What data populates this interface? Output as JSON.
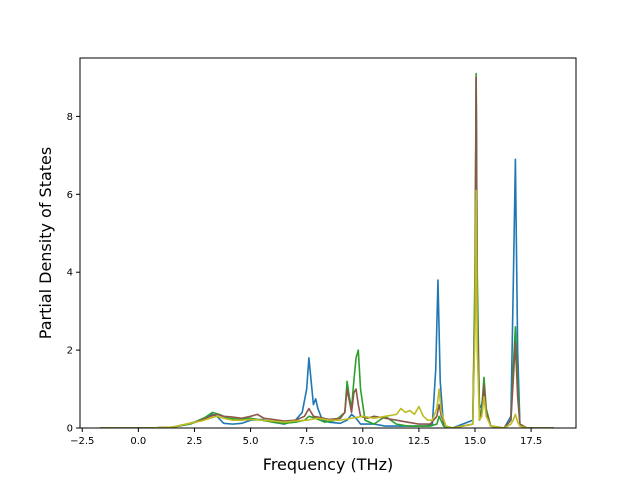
{
  "chart_data": {
    "type": "line",
    "title": "",
    "xlabel": "Frequency (THz)",
    "ylabel": "Partial Density of States",
    "xlim": [
      -2.6,
      19.5
    ],
    "ylim": [
      0,
      9.5
    ],
    "xticks": [
      -2.5,
      0.0,
      2.5,
      5.0,
      7.5,
      10.0,
      12.5,
      15.0,
      17.5
    ],
    "xtick_labels": [
      "−2.5",
      "0.0",
      "2.5",
      "5.0",
      "7.5",
      "10.0",
      "12.5",
      "15.0",
      "17.5"
    ],
    "yticks": [
      0,
      2,
      4,
      6,
      8
    ],
    "ytick_labels": [
      "0",
      "2",
      "4",
      "6",
      "8"
    ],
    "grid": false,
    "legend": "none",
    "series": [
      {
        "color": "#1f77b4",
        "x": [
          -1.7,
          0.5,
          1.5,
          2.3,
          2.7,
          3.0,
          3.3,
          3.5,
          3.8,
          4.2,
          4.6,
          5.0,
          5.5,
          6.0,
          6.5,
          7.0,
          7.3,
          7.5,
          7.6,
          7.7,
          7.8,
          7.9,
          8.0,
          8.2,
          8.5,
          9.0,
          9.3,
          9.5,
          9.7,
          9.9,
          10.5,
          11.0,
          12.0,
          12.8,
          13.1,
          13.25,
          13.35,
          13.45,
          13.6,
          14.0,
          14.9,
          15.0,
          15.05,
          15.1,
          15.2,
          15.3,
          15.4,
          15.5,
          15.7,
          16.3,
          16.6,
          16.7,
          16.8,
          16.9,
          17.0,
          17.3,
          18.5
        ],
        "y": [
          0,
          0,
          0.02,
          0.1,
          0.18,
          0.25,
          0.35,
          0.3,
          0.12,
          0.1,
          0.12,
          0.2,
          0.22,
          0.15,
          0.1,
          0.2,
          0.4,
          1.0,
          1.8,
          1.2,
          0.6,
          0.75,
          0.5,
          0.2,
          0.15,
          0.12,
          0.2,
          0.35,
          0.25,
          0.1,
          0.1,
          0.05,
          0.05,
          0.05,
          0.1,
          1.5,
          3.8,
          1.2,
          0.05,
          0,
          0.2,
          3.0,
          9.0,
          3.0,
          0.5,
          0.6,
          1.0,
          0.4,
          0.05,
          0,
          0.3,
          3.5,
          6.9,
          2.0,
          0.1,
          0,
          0
        ]
      },
      {
        "color": "#2ca02c",
        "x": [
          -1.7,
          0.5,
          1.5,
          2.3,
          2.7,
          3.0,
          3.3,
          3.6,
          4.0,
          4.5,
          5.0,
          5.5,
          6.0,
          6.5,
          7.0,
          7.4,
          7.6,
          7.9,
          8.3,
          8.8,
          9.2,
          9.3,
          9.4,
          9.5,
          9.6,
          9.7,
          9.8,
          9.9,
          10.1,
          10.5,
          11.0,
          11.5,
          12.0,
          12.5,
          13.0,
          13.3,
          13.4,
          13.6,
          14.0,
          14.9,
          15.0,
          15.05,
          15.1,
          15.2,
          15.3,
          15.4,
          15.5,
          15.7,
          16.3,
          16.6,
          16.7,
          16.8,
          16.9,
          17.0,
          17.3,
          18.5
        ],
        "y": [
          0,
          0,
          0.02,
          0.1,
          0.2,
          0.28,
          0.4,
          0.35,
          0.25,
          0.22,
          0.25,
          0.2,
          0.15,
          0.12,
          0.15,
          0.2,
          0.3,
          0.25,
          0.15,
          0.2,
          0.4,
          1.2,
          0.8,
          0.5,
          1.2,
          1.8,
          2.0,
          1.0,
          0.2,
          0.1,
          0.3,
          0.1,
          0.05,
          0.05,
          0.05,
          0.1,
          0.3,
          0.05,
          0,
          0.1,
          4.0,
          9.1,
          4.0,
          0.3,
          0.5,
          1.3,
          0.5,
          0.05,
          0,
          0.2,
          1.5,
          2.6,
          1.2,
          0.1,
          0,
          0
        ]
      },
      {
        "color": "#8c564b",
        "x": [
          -1.7,
          0.5,
          1.5,
          2.3,
          2.8,
          3.2,
          3.5,
          3.8,
          4.2,
          4.6,
          5.0,
          5.3,
          5.6,
          6.0,
          6.5,
          7.0,
          7.4,
          7.6,
          7.8,
          8.0,
          8.5,
          9.0,
          9.2,
          9.3,
          9.4,
          9.5,
          9.6,
          9.7,
          9.8,
          9.9,
          10.2,
          10.5,
          11.0,
          11.5,
          12.0,
          12.5,
          13.0,
          13.3,
          13.4,
          13.5,
          13.7,
          14.0,
          14.9,
          15.0,
          15.05,
          15.1,
          15.2,
          15.3,
          15.4,
          15.5,
          15.7,
          16.3,
          16.6,
          16.7,
          16.8,
          16.9,
          17.0,
          17.3,
          18.5
        ],
        "y": [
          0,
          0,
          0.02,
          0.12,
          0.2,
          0.3,
          0.35,
          0.3,
          0.28,
          0.25,
          0.3,
          0.35,
          0.25,
          0.22,
          0.18,
          0.2,
          0.3,
          0.5,
          0.3,
          0.28,
          0.22,
          0.25,
          0.4,
          1.0,
          0.7,
          0.4,
          0.9,
          1.0,
          0.6,
          0.3,
          0.25,
          0.3,
          0.25,
          0.2,
          0.15,
          0.1,
          0.1,
          0.3,
          0.6,
          0.3,
          0.05,
          0,
          0.1,
          3.0,
          9.0,
          3.0,
          0.2,
          0.4,
          1.1,
          0.4,
          0.05,
          0,
          0.2,
          1.2,
          2.2,
          0.8,
          0.1,
          0,
          0
        ]
      },
      {
        "color": "#bcbd22",
        "x": [
          -1.7,
          0.5,
          1.5,
          2.3,
          2.8,
          3.2,
          3.5,
          3.8,
          4.2,
          4.6,
          5.0,
          5.5,
          6.0,
          6.5,
          7.0,
          7.5,
          8.0,
          8.5,
          9.0,
          9.5,
          10.0,
          10.5,
          11.0,
          11.5,
          11.7,
          11.9,
          12.1,
          12.3,
          12.5,
          12.7,
          12.9,
          13.1,
          13.3,
          13.4,
          13.5,
          13.7,
          14.0,
          14.9,
          15.0,
          15.05,
          15.1,
          15.2,
          15.3,
          15.4,
          15.5,
          15.7,
          16.3,
          16.6,
          16.7,
          16.8,
          16.9,
          17.0,
          17.3,
          18.5
        ],
        "y": [
          0,
          0,
          0.02,
          0.12,
          0.18,
          0.25,
          0.3,
          0.25,
          0.2,
          0.2,
          0.22,
          0.2,
          0.18,
          0.15,
          0.18,
          0.2,
          0.25,
          0.2,
          0.2,
          0.25,
          0.3,
          0.25,
          0.3,
          0.35,
          0.5,
          0.4,
          0.45,
          0.35,
          0.55,
          0.3,
          0.2,
          0.2,
          0.5,
          1.0,
          0.4,
          0.05,
          0,
          0.1,
          2.5,
          6.1,
          2.0,
          0.2,
          0.3,
          0.8,
          0.3,
          0.05,
          0,
          0.1,
          0.2,
          0.35,
          0.15,
          0.05,
          0,
          0
        ]
      }
    ]
  }
}
